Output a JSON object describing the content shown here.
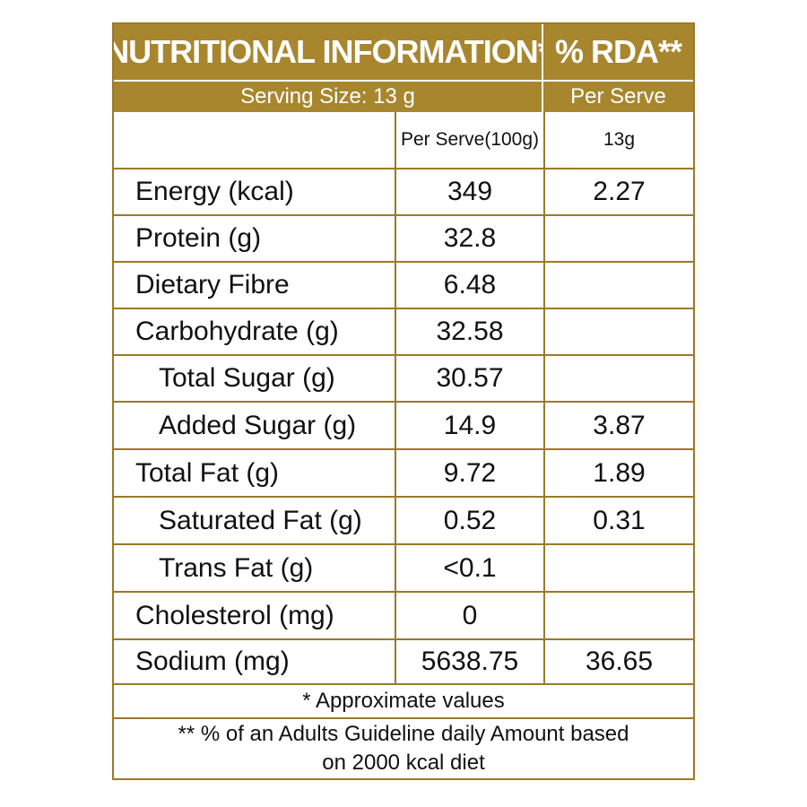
{
  "table": {
    "title": "NUTRITIONAL INFORMATION*",
    "rda_header": "% RDA**",
    "serving_size": "Serving Size:  13 g",
    "per_serve_label": "Per Serve",
    "col_per_100g": "Per Serve(100g)",
    "col_per_13g": "13g",
    "rows": [
      {
        "name": "Energy (kcal)",
        "per100": "349",
        "rda": "2.27"
      },
      {
        "name": "Protein (g)",
        "per100": "32.8",
        "rda": ""
      },
      {
        "name": "Dietary Fibre",
        "per100": "6.48",
        "rda": ""
      },
      {
        "name": "Carbohydrate (g)",
        "per100": "32.58",
        "rda": ""
      },
      {
        "name": "Total Sugar (g)",
        "per100": "30.57",
        "rda": ""
      },
      {
        "name": "Added Sugar (g)",
        "per100": "14.9",
        "rda": "3.87"
      },
      {
        "name": "Total Fat (g)",
        "per100": "9.72",
        "rda": "1.89"
      },
      {
        "name": "Saturated Fat (g)",
        "per100": "0.52",
        "rda": "0.31"
      },
      {
        "name": "Trans Fat (g)",
        "per100": "<0.1",
        "rda": ""
      },
      {
        "name": "Cholesterol (mg)",
        "per100": "0",
        "rda": ""
      },
      {
        "name": "Sodium (mg)",
        "per100": "5638.75",
        "rda": "36.65"
      }
    ],
    "footnote_1": "* Approximate values",
    "footnote_2_line1": "** % of an Adults Guideline daily Amount based",
    "footnote_2_line2": "on 2000 kcal diet"
  },
  "colors": {
    "header_gold": "#a8862e",
    "border_gold": "#9a7a2a"
  }
}
